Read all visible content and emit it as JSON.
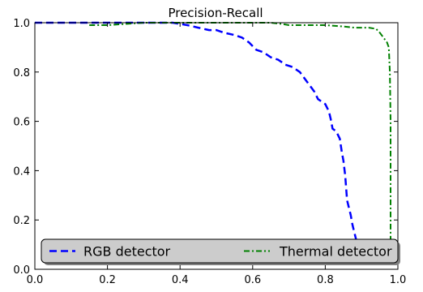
{
  "chart_data": {
    "type": "line",
    "title": "Precision-Recall",
    "xlabel": "",
    "ylabel": "",
    "xlim": [
      0.0,
      1.0
    ],
    "ylim": [
      0.0,
      1.0
    ],
    "x_ticks": [
      "0.0",
      "0.2",
      "0.4",
      "0.6",
      "0.8",
      "1.0"
    ],
    "y_ticks": [
      "0.0",
      "0.2",
      "0.4",
      "0.6",
      "0.8",
      "1.0"
    ],
    "grid": false,
    "legend_position": "bottom",
    "series": [
      {
        "name": "RGB detector",
        "color": "#0000ff",
        "linestyle": "dashed",
        "points": [
          [
            0.0,
            1.0
          ],
          [
            0.1,
            1.0
          ],
          [
            0.2,
            1.0
          ],
          [
            0.3,
            1.0
          ],
          [
            0.38,
            1.0
          ],
          [
            0.42,
            0.99
          ],
          [
            0.45,
            0.98
          ],
          [
            0.48,
            0.97
          ],
          [
            0.5,
            0.97
          ],
          [
            0.52,
            0.96
          ],
          [
            0.55,
            0.95
          ],
          [
            0.57,
            0.94
          ],
          [
            0.59,
            0.92
          ],
          [
            0.61,
            0.89
          ],
          [
            0.63,
            0.88
          ],
          [
            0.65,
            0.86
          ],
          [
            0.67,
            0.85
          ],
          [
            0.69,
            0.83
          ],
          [
            0.71,
            0.82
          ],
          [
            0.73,
            0.8
          ],
          [
            0.74,
            0.78
          ],
          [
            0.75,
            0.76
          ],
          [
            0.76,
            0.74
          ],
          [
            0.77,
            0.72
          ],
          [
            0.78,
            0.69
          ],
          [
            0.79,
            0.68
          ],
          [
            0.8,
            0.67
          ],
          [
            0.81,
            0.64
          ],
          [
            0.815,
            0.61
          ],
          [
            0.82,
            0.57
          ],
          [
            0.83,
            0.56
          ],
          [
            0.84,
            0.53
          ],
          [
            0.845,
            0.48
          ],
          [
            0.85,
            0.44
          ],
          [
            0.855,
            0.38
          ],
          [
            0.86,
            0.28
          ],
          [
            0.87,
            0.22
          ],
          [
            0.875,
            0.18
          ],
          [
            0.88,
            0.15
          ],
          [
            0.885,
            0.12
          ],
          [
            0.89,
            0.09
          ],
          [
            0.893,
            0.05
          ]
        ]
      },
      {
        "name": "Thermal detector",
        "color": "#008000",
        "linestyle": "dashdot",
        "points": [
          [
            0.15,
            0.99
          ],
          [
            0.2,
            0.99
          ],
          [
            0.3,
            1.0
          ],
          [
            0.4,
            1.0
          ],
          [
            0.5,
            1.0
          ],
          [
            0.6,
            1.0
          ],
          [
            0.65,
            1.0
          ],
          [
            0.68,
            0.995
          ],
          [
            0.7,
            0.99
          ],
          [
            0.75,
            0.99
          ],
          [
            0.8,
            0.99
          ],
          [
            0.85,
            0.985
          ],
          [
            0.88,
            0.98
          ],
          [
            0.92,
            0.98
          ],
          [
            0.94,
            0.975
          ],
          [
            0.95,
            0.96
          ],
          [
            0.96,
            0.94
          ],
          [
            0.97,
            0.92
          ],
          [
            0.975,
            0.9
          ],
          [
            0.978,
            0.8
          ],
          [
            0.98,
            0.6
          ],
          [
            0.98,
            0.4
          ],
          [
            0.98,
            0.2
          ],
          [
            0.98,
            0.1
          ]
        ]
      }
    ]
  }
}
